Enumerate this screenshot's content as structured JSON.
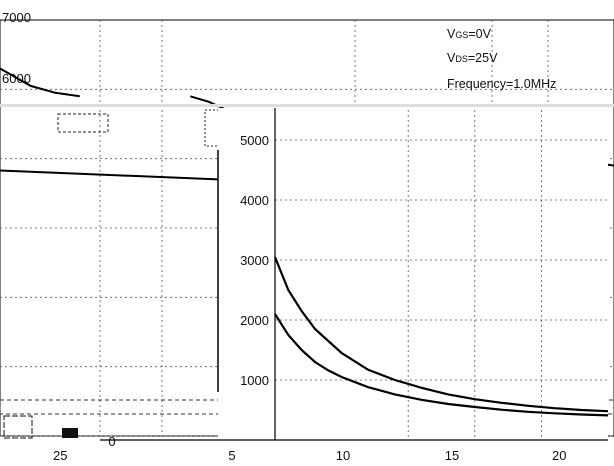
{
  "chart_data": [
    {
      "type": "line",
      "panel": "outer",
      "ylim": [
        1000,
        7000
      ],
      "y_ticks": [
        "7000",
        "6000",
        "5000"
      ],
      "x_ticks": [
        "25",
        "20"
      ],
      "annotations": {
        "vgs_prefix": "V",
        "vgs_sub": "GS",
        "vgs_value": "=0V",
        "vds_prefix": "V",
        "vds_sub": "DS",
        "vds_value": "=25V",
        "frequency": "Frequency=1.0MHz"
      },
      "series": [
        {
          "points": [
            [
              0,
              6300
            ],
            [
              0.05,
              6050
            ],
            [
              0.09,
              5950
            ],
            [
              0.13,
              5900
            ]
          ]
        },
        {
          "points": [
            [
              0.31,
              5900
            ],
            [
              0.34,
              5820
            ],
            [
              0.37,
              5700
            ],
            [
              0.4,
              5600
            ]
          ]
        },
        {
          "points": [
            [
              0,
              4830
            ],
            [
              0.36,
              4700
            ]
          ]
        },
        {
          "points": [
            [
              0.55,
              5600
            ],
            [
              0.65,
              5420
            ],
            [
              0.8,
              5180
            ],
            [
              1.0,
              4900
            ]
          ]
        }
      ]
    },
    {
      "type": "line",
      "panel": "inset",
      "ylim": [
        0,
        6000
      ],
      "xlim": [
        0,
        25
      ],
      "y_ticks": [
        "5000",
        "4000",
        "3000",
        "2000",
        "1000"
      ],
      "x_ticks": [
        "0",
        "5",
        "10",
        "15"
      ],
      "series": [
        {
          "x": [
            0,
            1,
            2,
            3,
            4,
            5,
            7,
            9,
            11,
            13,
            15,
            17,
            19,
            21,
            23,
            25
          ],
          "y": [
            3050,
            2500,
            2150,
            1850,
            1650,
            1450,
            1170,
            1000,
            870,
            760,
            680,
            620,
            570,
            530,
            500,
            480
          ]
        },
        {
          "x": [
            0,
            1,
            2,
            3,
            4,
            5,
            7,
            9,
            11,
            13,
            15,
            17,
            19,
            21,
            23,
            25
          ],
          "y": [
            2100,
            1750,
            1500,
            1300,
            1160,
            1050,
            880,
            760,
            670,
            600,
            550,
            505,
            470,
            445,
            425,
            410
          ]
        }
      ]
    }
  ]
}
